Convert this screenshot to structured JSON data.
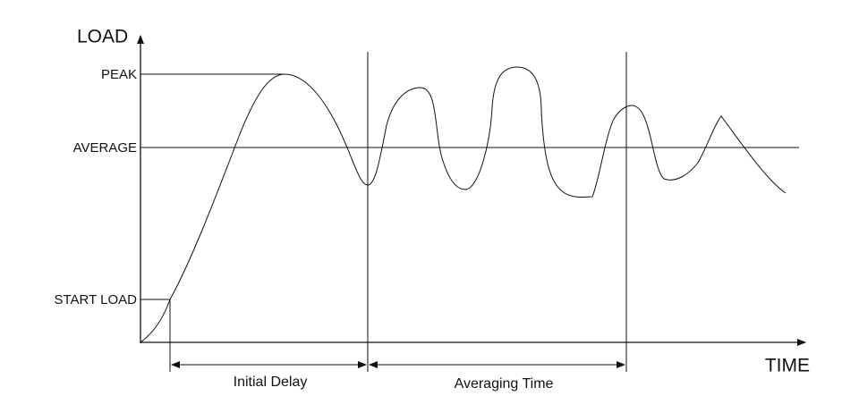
{
  "axes": {
    "y_label": "LOAD",
    "x_label": "TIME"
  },
  "levels": {
    "peak": "PEAK",
    "average": "AVERAGE",
    "start_load": "START LOAD"
  },
  "intervals": {
    "initial_delay": "Initial Delay",
    "averaging_time": "Averaging Time"
  }
}
